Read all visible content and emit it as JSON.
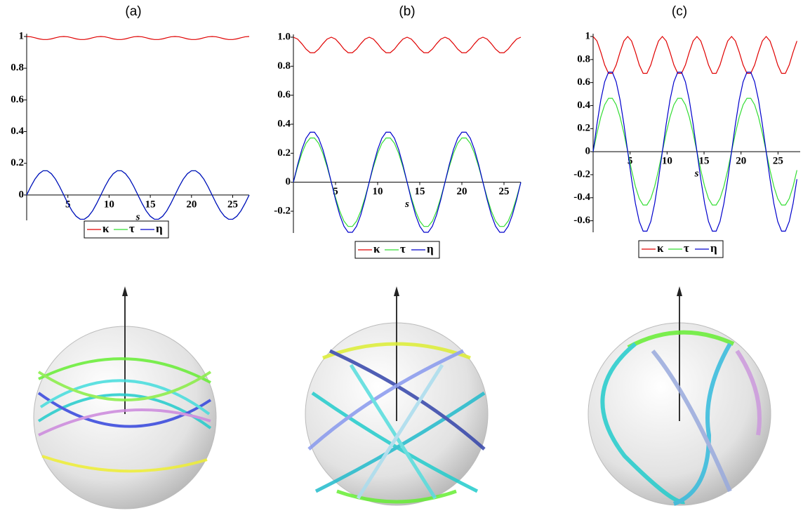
{
  "chart_data": [
    {
      "type": "line",
      "title": "(a)",
      "x_label": "s",
      "x": [
        0,
        0.5,
        1,
        1.5,
        2,
        2.5,
        3,
        3.5,
        4,
        4.5,
        5,
        5.5,
        6,
        6.5,
        7,
        7.5,
        8,
        8.5,
        9,
        9.5,
        10,
        10.5,
        11,
        11.5,
        12,
        12.5,
        13,
        13.5,
        14,
        14.5,
        15,
        15.5,
        16,
        16.5,
        17,
        17.5,
        18,
        18.5,
        19,
        19.5,
        20,
        20.5,
        21,
        21.5,
        22,
        22.5,
        23,
        23.5,
        24,
        24.5,
        25,
        25.5,
        26,
        26.5,
        27
      ],
      "series": [
        {
          "name": "κ",
          "color": "#e00000",
          "values": [
            1,
            0.998,
            0.992,
            0.985,
            0.981,
            0.981,
            0.985,
            0.992,
            0.998,
            1,
            0.998,
            0.992,
            0.985,
            0.981,
            0.981,
            0.985,
            0.992,
            0.998,
            1,
            0.998,
            0.992,
            0.985,
            0.981,
            0.981,
            0.985,
            0.992,
            0.998,
            1,
            0.998,
            0.992,
            0.985,
            0.981,
            0.981,
            0.985,
            0.992,
            0.998,
            1,
            0.998,
            0.992,
            0.985,
            0.981,
            0.981,
            0.985,
            0.992,
            0.998,
            1,
            0.998,
            0.992,
            0.985,
            0.981,
            0.981,
            0.985,
            0.992,
            0.998,
            1
          ]
        },
        {
          "name": "τ",
          "color": "#33dd33",
          "values": [
            0,
            0.053,
            0.1,
            0.134,
            0.153,
            0.153,
            0.134,
            0.1,
            0.053,
            0,
            -0.053,
            -0.1,
            -0.134,
            -0.153,
            -0.153,
            -0.134,
            -0.1,
            -0.053,
            0,
            0.053,
            0.1,
            0.134,
            0.153,
            0.153,
            0.134,
            0.1,
            0.053,
            0,
            -0.053,
            -0.1,
            -0.134,
            -0.153,
            -0.153,
            -0.134,
            -0.1,
            -0.053,
            0,
            0.053,
            0.1,
            0.134,
            0.153,
            0.153,
            0.134,
            0.1,
            0.053,
            0,
            -0.053,
            -0.1,
            -0.134,
            -0.153,
            -0.153,
            -0.134,
            -0.1,
            -0.053,
            0
          ]
        },
        {
          "name": "η",
          "color": "#0000cc",
          "values": [
            0,
            0.053,
            0.1,
            0.134,
            0.153,
            0.153,
            0.134,
            0.1,
            0.053,
            0,
            -0.053,
            -0.1,
            -0.134,
            -0.153,
            -0.153,
            -0.134,
            -0.1,
            -0.053,
            0,
            0.053,
            0.1,
            0.134,
            0.153,
            0.153,
            0.134,
            0.1,
            0.053,
            0,
            -0.053,
            -0.1,
            -0.134,
            -0.153,
            -0.153,
            -0.134,
            -0.1,
            -0.053,
            0,
            0.053,
            0.1,
            0.134,
            0.153,
            0.153,
            0.134,
            0.1,
            0.053,
            0,
            -0.053,
            -0.1,
            -0.134,
            -0.153,
            -0.153,
            -0.134,
            -0.1,
            -0.053,
            0
          ]
        }
      ],
      "xlim": [
        0,
        27
      ],
      "ylim": [
        -0.16,
        1
      ],
      "xticks": [
        5,
        10,
        15,
        20,
        25
      ],
      "yticks": [
        0,
        0.2,
        0.4,
        0.6,
        0.8,
        1
      ]
    },
    {
      "type": "line",
      "title": "(b)",
      "x_label": "s",
      "x": [
        0,
        0.5,
        1,
        1.5,
        2,
        2.5,
        3,
        3.5,
        4,
        4.5,
        5,
        5.5,
        6,
        6.5,
        7,
        7.5,
        8,
        8.5,
        9,
        9.5,
        10,
        10.5,
        11,
        11.5,
        12,
        12.5,
        13,
        13.5,
        14,
        14.5,
        15,
        15.5,
        16,
        16.5,
        17,
        17.5,
        18,
        18.5,
        19,
        19.5,
        20,
        20.5,
        21,
        21.5,
        22,
        22.5,
        23,
        23.5,
        24,
        24.5,
        25,
        25.5,
        26,
        26.5,
        27
      ],
      "series": [
        {
          "name": "κ",
          "color": "#e00000",
          "values": [
            1,
            0.987,
            0.955,
            0.918,
            0.893,
            0.893,
            0.918,
            0.955,
            0.987,
            1,
            0.987,
            0.955,
            0.918,
            0.893,
            0.893,
            0.918,
            0.955,
            0.987,
            1,
            0.987,
            0.955,
            0.918,
            0.893,
            0.893,
            0.918,
            0.955,
            0.987,
            1,
            0.987,
            0.955,
            0.918,
            0.893,
            0.893,
            0.918,
            0.955,
            0.987,
            1,
            0.987,
            0.955,
            0.918,
            0.893,
            0.893,
            0.918,
            0.955,
            0.987,
            1,
            0.987,
            0.955,
            0.918,
            0.893,
            0.893,
            0.918,
            0.955,
            0.987,
            1
          ]
        },
        {
          "name": "τ",
          "color": "#33dd33",
          "values": [
            0,
            0.106,
            0.199,
            0.268,
            0.305,
            0.305,
            0.268,
            0.199,
            0.106,
            0,
            -0.106,
            -0.199,
            -0.268,
            -0.305,
            -0.305,
            -0.268,
            -0.199,
            -0.106,
            0,
            0.106,
            0.199,
            0.268,
            0.305,
            0.305,
            0.268,
            0.199,
            0.106,
            0,
            -0.106,
            -0.199,
            -0.268,
            -0.305,
            -0.305,
            -0.268,
            -0.199,
            -0.106,
            0,
            0.106,
            0.199,
            0.268,
            0.305,
            0.305,
            0.268,
            0.199,
            0.106,
            0,
            -0.106,
            -0.199,
            -0.268,
            -0.305,
            -0.305,
            -0.268,
            -0.199,
            -0.106,
            0
          ]
        },
        {
          "name": "η",
          "color": "#0000cc",
          "values": [
            0,
            0.12,
            0.225,
            0.303,
            0.345,
            0.345,
            0.303,
            0.225,
            0.12,
            0,
            -0.12,
            -0.225,
            -0.303,
            -0.345,
            -0.345,
            -0.303,
            -0.225,
            -0.12,
            0,
            0.12,
            0.225,
            0.303,
            0.345,
            0.345,
            0.303,
            0.225,
            0.12,
            0,
            -0.12,
            -0.225,
            -0.303,
            -0.345,
            -0.345,
            -0.303,
            -0.225,
            -0.12,
            0,
            0.12,
            0.225,
            0.303,
            0.345,
            0.345,
            0.303,
            0.225,
            0.12,
            0,
            -0.12,
            -0.225,
            -0.303,
            -0.345,
            -0.345,
            -0.303,
            -0.225,
            -0.12,
            0
          ]
        }
      ],
      "xlim": [
        0,
        27
      ],
      "ylim": [
        -0.35,
        1
      ],
      "xticks": [
        5,
        10,
        15,
        20,
        25
      ],
      "yticks": [
        -0.2,
        0,
        0.2,
        0.4,
        0.6,
        0.8,
        {
          "value": 1,
          "label": "1.0"
        }
      ]
    },
    {
      "type": "line",
      "title": "(c)",
      "x_label": "s",
      "x": [
        0,
        0.52,
        1.04,
        1.56,
        2.08,
        2.6,
        3.12,
        3.64,
        4.16,
        4.68,
        5.2,
        5.72,
        6.24,
        6.76,
        7.28,
        7.8,
        8.32,
        8.84,
        9.36,
        9.88,
        10.4,
        10.92,
        11.44,
        11.96,
        12.48,
        13,
        13.52,
        14.04,
        14.56,
        15.08,
        15.6,
        16.12,
        16.64,
        17.16,
        17.68,
        18.2,
        18.72,
        19.24,
        19.76,
        20.28,
        20.8,
        21.32,
        21.84,
        22.36,
        22.88,
        23.4,
        23.92,
        24.44,
        24.96,
        25.48,
        26,
        26.52,
        27.04,
        27.56
      ],
      "series": [
        {
          "name": "κ",
          "color": "#e00000",
          "values": [
            1,
            0.961,
            0.864,
            0.753,
            0.68,
            0.68,
            0.753,
            0.864,
            0.961,
            1,
            0.961,
            0.864,
            0.753,
            0.68,
            0.68,
            0.753,
            0.864,
            0.961,
            1,
            0.961,
            0.864,
            0.753,
            0.68,
            0.68,
            0.753,
            0.864,
            0.961,
            1,
            0.961,
            0.864,
            0.753,
            0.68,
            0.68,
            0.753,
            0.864,
            0.961,
            1,
            0.961,
            0.864,
            0.753,
            0.68,
            0.68,
            0.753,
            0.864,
            0.961,
            1,
            0.961,
            0.864,
            0.753,
            0.68,
            0.68,
            0.753,
            0.864,
            0.961
          ]
        },
        {
          "name": "τ",
          "color": "#33dd33",
          "values": [
            0,
            0.161,
            0.302,
            0.407,
            0.463,
            0.463,
            0.407,
            0.302,
            0.161,
            0,
            -0.161,
            -0.302,
            -0.407,
            -0.463,
            -0.463,
            -0.407,
            -0.302,
            -0.161,
            0,
            0.161,
            0.302,
            0.407,
            0.463,
            0.463,
            0.407,
            0.302,
            0.161,
            0,
            -0.161,
            -0.302,
            -0.407,
            -0.463,
            -0.463,
            -0.407,
            -0.302,
            -0.161,
            0,
            0.161,
            0.302,
            0.407,
            0.463,
            0.463,
            0.407,
            0.302,
            0.161,
            0,
            -0.161,
            -0.302,
            -0.407,
            -0.463,
            -0.463,
            -0.407,
            -0.302,
            -0.161
          ]
        },
        {
          "name": "η",
          "color": "#0000cc",
          "values": [
            0,
            0.239,
            0.45,
            0.606,
            0.69,
            0.69,
            0.606,
            0.45,
            0.239,
            0,
            -0.239,
            -0.45,
            -0.606,
            -0.69,
            -0.69,
            -0.606,
            -0.45,
            -0.239,
            0,
            0.239,
            0.45,
            0.606,
            0.69,
            0.69,
            0.606,
            0.45,
            0.239,
            0,
            -0.239,
            -0.45,
            -0.606,
            -0.69,
            -0.69,
            -0.606,
            -0.45,
            -0.239,
            0,
            0.239,
            0.45,
            0.606,
            0.69,
            0.69,
            0.606,
            0.45,
            0.239,
            0,
            -0.239,
            -0.45,
            -0.606,
            -0.69,
            -0.69,
            -0.606,
            -0.45,
            -0.239
          ]
        }
      ],
      "xlim": [
        0,
        28
      ],
      "ylim": [
        -0.7,
        1
      ],
      "xticks": [
        5,
        10,
        15,
        20,
        25
      ],
      "yticks": [
        -0.6,
        -0.4,
        -0.2,
        0,
        0.2,
        0.4,
        0.6,
        0.8,
        1
      ]
    }
  ]
}
